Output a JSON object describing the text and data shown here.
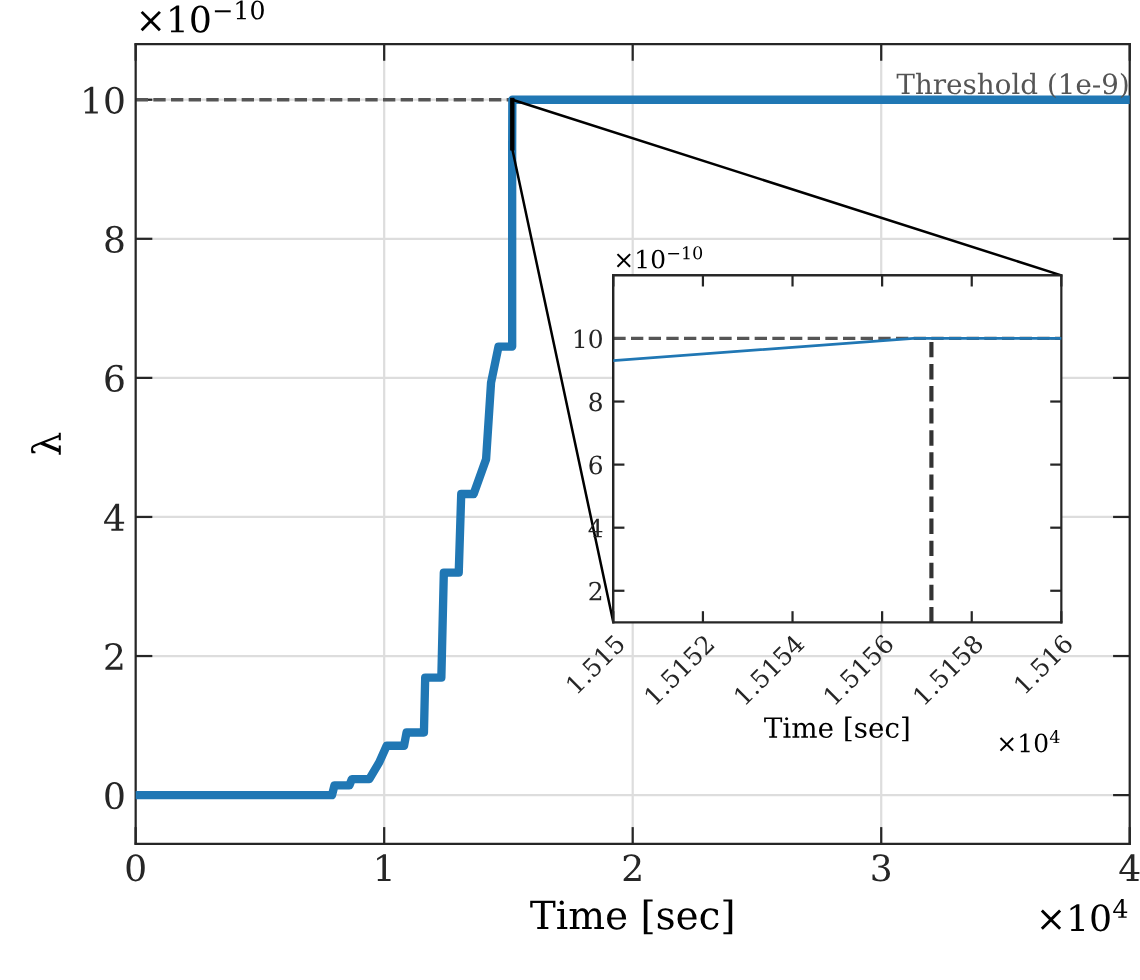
{
  "chart_data": [
    {
      "type": "line",
      "xlabel": "Time [sec]",
      "ylabel": "λ",
      "x": [
        0,
        0.79,
        0.8,
        0.86,
        0.87,
        0.94,
        0.98,
        1.01,
        1.08,
        1.09,
        1.16,
        1.165,
        1.23,
        1.24,
        1.3,
        1.31,
        1.36,
        1.41,
        1.43,
        1.46,
        1.515,
        1.515,
        1.5157,
        4
      ],
      "series": [
        {
          "color": "#2077b4",
          "values": [
            0,
            0,
            0.14,
            0.14,
            0.23,
            0.23,
            0.47,
            0.71,
            0.71,
            0.9,
            0.9,
            1.69,
            1.69,
            3.2,
            3.2,
            4.33,
            4.33,
            4.83,
            5.93,
            6.45,
            6.45,
            9.3,
            10,
            10
          ]
        }
      ],
      "xlim": [
        0,
        4
      ],
      "ylim": [
        -0.7,
        10.8
      ],
      "xticks": [
        0,
        1,
        2,
        3,
        4
      ],
      "yticks": [
        0,
        2,
        4,
        6,
        8,
        10
      ],
      "ref_lines": [
        {
          "axis": "y",
          "value": 10,
          "label": "Threshold (1e-9)",
          "color": "#555555",
          "line_style": "dashed"
        }
      ],
      "annotations": [
        "×10$^{−10}$",
        "×10$^{4}$"
      ],
      "grid": true,
      "line_style": "solid",
      "marker": "none",
      "legend": false
    },
    {
      "type": "line",
      "xlabel": "Time [sec]",
      "x": [
        1.515,
        1.51567,
        1.516
      ],
      "series": [
        {
          "color": "#2077b4",
          "values": [
            9.3,
            10,
            10
          ]
        }
      ],
      "xlim": [
        1.515,
        1.516
      ],
      "ylim": [
        1,
        12
      ],
      "xticks": [
        {
          "value": 1.515,
          "label": "1.515"
        },
        {
          "value": 1.5152,
          "label": "1.5152"
        },
        {
          "value": 1.5154,
          "label": "1.5154"
        },
        {
          "value": 1.5156,
          "label": "1.5156"
        },
        {
          "value": 1.5158,
          "label": "1.5158"
        },
        {
          "value": 1.516,
          "label": "1.516"
        }
      ],
      "yticks": [
        2,
        4,
        6,
        8,
        10
      ],
      "ref_lines": [
        {
          "axis": "y",
          "value": 10,
          "color": "#555555",
          "line_style": "dashed"
        },
        {
          "axis": "x",
          "value": 1.51571,
          "color": "#333333",
          "line_style": "dashed"
        }
      ],
      "annotations": [
        "×10$^{−10}$",
        "×10$^{4}$"
      ],
      "grid": false,
      "line_style": "solid",
      "marker": "none",
      "legend": false
    }
  ]
}
